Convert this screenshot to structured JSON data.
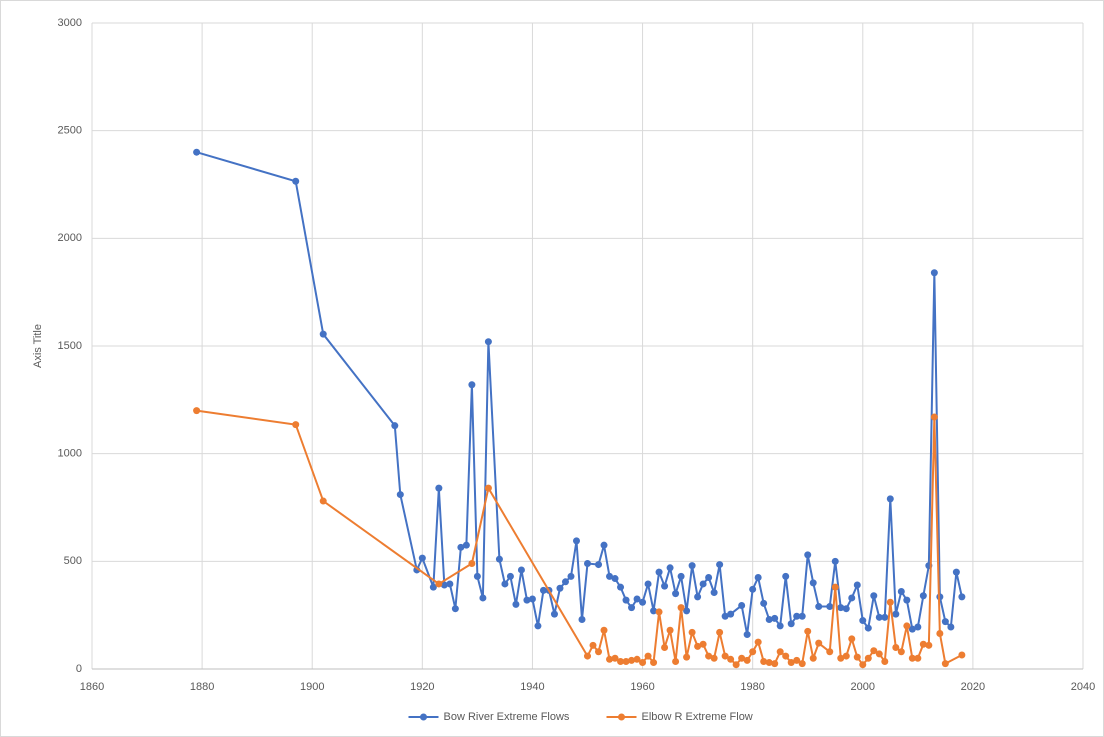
{
  "chart_data": {
    "type": "line",
    "y_label": "Axis Title",
    "xlim": [
      1860,
      2040
    ],
    "xticks": [
      1860,
      1880,
      1900,
      1920,
      1940,
      1960,
      1980,
      2000,
      2020,
      2040
    ],
    "ylim": [
      0,
      3000
    ],
    "yticks": [
      0,
      500,
      1000,
      1500,
      2000,
      2500,
      3000
    ],
    "grid": true,
    "legend": "bottom",
    "series": [
      {
        "name": "Bow River Extreme Flows",
        "color": "#4472c4",
        "x": [
          1879,
          1897,
          1902,
          1915,
          1916,
          1919,
          1920,
          1922,
          1923,
          1924,
          1925,
          1926,
          1927,
          1928,
          1929,
          1930,
          1931,
          1932,
          1934,
          1935,
          1936,
          1937,
          1938,
          1939,
          1940,
          1941,
          1942,
          1943,
          1944,
          1945,
          1946,
          1947,
          1948,
          1949,
          1950,
          1952,
          1953,
          1954,
          1955,
          1956,
          1957,
          1958,
          1959,
          1960,
          1961,
          1962,
          1963,
          1964,
          1965,
          1966,
          1967,
          1968,
          1969,
          1970,
          1971,
          1972,
          1973,
          1974,
          1975,
          1976,
          1978,
          1979,
          1980,
          1981,
          1982,
          1983,
          1984,
          1985,
          1986,
          1987,
          1988,
          1989,
          1990,
          1991,
          1992,
          1994,
          1995,
          1996,
          1997,
          1998,
          1999,
          2000,
          2001,
          2002,
          2003,
          2004,
          2005,
          2006,
          2007,
          2008,
          2009,
          2010,
          2011,
          2012,
          2013,
          2014,
          2015,
          2016,
          2017,
          2018
        ],
        "values": [
          2400,
          2265,
          1555,
          1130,
          810,
          460,
          515,
          380,
          840,
          390,
          395,
          280,
          565,
          575,
          1320,
          430,
          330,
          1520,
          510,
          395,
          430,
          300,
          460,
          320,
          325,
          200,
          365,
          365,
          255,
          375,
          405,
          430,
          595,
          230,
          490,
          485,
          575,
          430,
          420,
          380,
          320,
          285,
          325,
          310,
          395,
          270,
          450,
          385,
          470,
          350,
          430,
          270,
          480,
          335,
          395,
          425,
          355,
          485,
          245,
          255,
          295,
          160,
          370,
          425,
          305,
          230,
          235,
          200,
          430,
          210,
          245,
          245,
          530,
          400,
          290,
          290,
          500,
          285,
          280,
          330,
          390,
          225,
          190,
          340,
          240,
          240,
          790,
          255,
          360,
          320,
          185,
          195,
          340,
          480,
          1840,
          335,
          220,
          195,
          450,
          335
        ]
      },
      {
        "name": "Elbow R Extreme Flow",
        "color": "#ed7d31",
        "x": [
          1879,
          1897,
          1902,
          1923,
          1929,
          1932,
          1950,
          1951,
          1952,
          1953,
          1954,
          1955,
          1956,
          1957,
          1958,
          1959,
          1960,
          1961,
          1962,
          1963,
          1964,
          1965,
          1966,
          1967,
          1968,
          1969,
          1970,
          1971,
          1972,
          1973,
          1974,
          1975,
          1976,
          1977,
          1978,
          1979,
          1980,
          1981,
          1982,
          1983,
          1984,
          1985,
          1986,
          1987,
          1988,
          1989,
          1990,
          1991,
          1992,
          1994,
          1995,
          1996,
          1997,
          1998,
          1999,
          2000,
          2001,
          2002,
          2003,
          2004,
          2005,
          2006,
          2007,
          2008,
          2009,
          2010,
          2011,
          2012,
          2013,
          2014,
          2015,
          2018
        ],
        "values": [
          1200,
          1135,
          780,
          395,
          490,
          840,
          60,
          110,
          80,
          180,
          45,
          50,
          35,
          35,
          40,
          45,
          30,
          60,
          30,
          265,
          100,
          180,
          35,
          285,
          55,
          170,
          105,
          115,
          60,
          50,
          170,
          60,
          45,
          20,
          50,
          40,
          80,
          125,
          35,
          30,
          25,
          80,
          60,
          30,
          40,
          25,
          175,
          50,
          120,
          80,
          380,
          50,
          60,
          140,
          55,
          20,
          50,
          85,
          70,
          35,
          310,
          100,
          80,
          200,
          50,
          50,
          115,
          110,
          1170,
          165,
          25,
          65
        ]
      }
    ]
  }
}
